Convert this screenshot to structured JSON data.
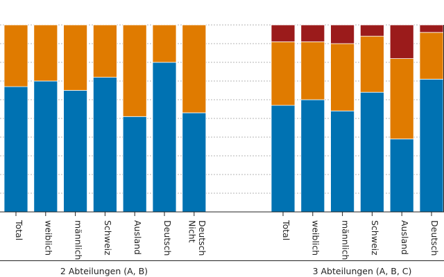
{
  "chart_data": {
    "type": "bar",
    "stacked": true,
    "normalized_to_100_percent": true,
    "grid": true,
    "grid_style": "dotted horizontal",
    "ylim": [
      0,
      1
    ],
    "colors": {
      "series_1": "#0072b2",
      "series_2": "#e07b00",
      "series_3": "#9b1b1b"
    },
    "groups": [
      {
        "label": "2 Abteilungen (A, B)",
        "categories": [
          "Total",
          "weiblich",
          "männlich",
          "Schweiz",
          "Ausland",
          "Deutsch",
          "Nicht Deutsch"
        ],
        "series": [
          {
            "values": [
              0.67,
              0.7,
              0.65,
              0.72,
              0.51,
              0.8,
              0.53
            ]
          },
          {
            "values": [
              0.33,
              0.3,
              0.35,
              0.28,
              0.49,
              0.2,
              0.47
            ]
          }
        ]
      },
      {
        "label": "3 Abteilungen (A, B, C)",
        "categories": [
          "Total",
          "weiblich",
          "männlich",
          "Schweiz",
          "Ausland",
          "Deutsch"
        ],
        "series": [
          {
            "values": [
              0.57,
              0.6,
              0.54,
              0.64,
              0.39,
              0.71
            ]
          },
          {
            "values": [
              0.34,
              0.31,
              0.36,
              0.3,
              0.43,
              0.25
            ]
          },
          {
            "values": [
              0.09,
              0.09,
              0.1,
              0.06,
              0.18,
              0.04
            ]
          }
        ]
      }
    ]
  }
}
